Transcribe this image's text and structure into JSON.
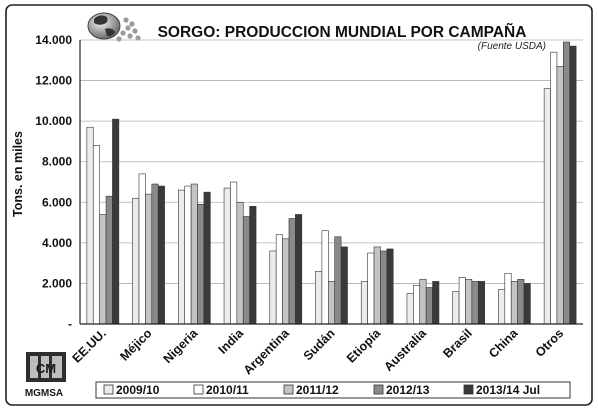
{
  "chart_data": {
    "type": "bar",
    "title": "SORGO: PRODUCCION MUNDIAL POR CAMPAÑA",
    "subtitle": "(Fuente USDA)",
    "ylabel": "Tons. en miles",
    "xlabel": "",
    "ylim": [
      0,
      14000
    ],
    "yticks": [
      "-",
      "2.000",
      "4.000",
      "6.000",
      "8.000",
      "10.000",
      "12.000",
      "14.000"
    ],
    "grid": true,
    "legend_position": "bottom",
    "categories": [
      "EE.UU.",
      "Méjico",
      "Nigeria",
      "India",
      "Argentina",
      "Sudán",
      "Etiopía",
      "Australia",
      "Brasil",
      "China",
      "Otros"
    ],
    "series": [
      {
        "name": "2009/10",
        "color": "#ececec",
        "values": [
          9700,
          6200,
          6600,
          6700,
          3600,
          2600,
          2100,
          1500,
          1600,
          1700,
          11600
        ]
      },
      {
        "name": "2010/11",
        "color": "#ffffff",
        "values": [
          8800,
          7400,
          6800,
          7000,
          4400,
          4600,
          3500,
          1900,
          2300,
          2500,
          13400
        ]
      },
      {
        "name": "2011/12",
        "color": "#c4c4c4",
        "values": [
          5400,
          6400,
          6900,
          6000,
          4200,
          2100,
          3800,
          2200,
          2200,
          2100,
          12700
        ]
      },
      {
        "name": "2012/13",
        "color": "#8a8a8a",
        "values": [
          6300,
          6900,
          5900,
          5300,
          5200,
          4300,
          3600,
          1800,
          2100,
          2200,
          13900
        ]
      },
      {
        "name": "2013/14 Jul",
        "color": "#3a3a3a",
        "values": [
          10100,
          6800,
          6500,
          5800,
          5400,
          3800,
          3700,
          2100,
          2100,
          2000,
          13700
        ]
      }
    ],
    "logo": {
      "text": "MGMSA",
      "mark": "CM"
    }
  }
}
